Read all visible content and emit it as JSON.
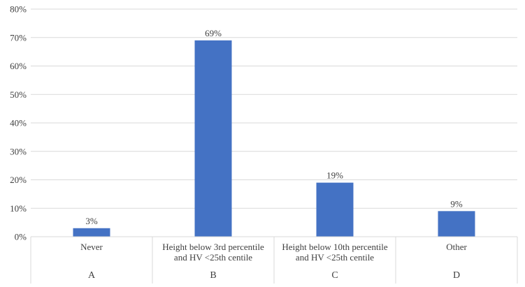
{
  "chart_data": {
    "type": "bar",
    "categories": [
      [
        "Never"
      ],
      [
        "Height below 3rd percentile",
        "and HV <25th centile"
      ],
      [
        "Height below 10th percentile",
        "and HV <25th centile"
      ],
      [
        "Other"
      ]
    ],
    "groups": [
      "A",
      "B",
      "C",
      "D"
    ],
    "values": [
      3,
      69,
      19,
      9
    ],
    "data_labels": [
      "3%",
      "69%",
      "19%",
      "9%"
    ],
    "yticks": [
      "0%",
      "10%",
      "20%",
      "30%",
      "40%",
      "50%",
      "60%",
      "70%",
      "80%"
    ],
    "ylim": [
      0,
      80
    ],
    "grid": true,
    "legend": "none",
    "title": "",
    "xlabel": "",
    "ylabel": "",
    "colors": {
      "bar": "#4472C4",
      "grid": "#D9D9D9",
      "text": "#404040"
    }
  }
}
